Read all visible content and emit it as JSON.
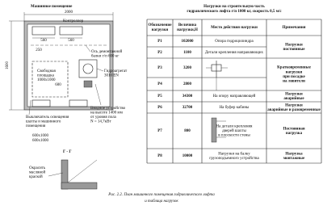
{
  "plan": {
    "title": "Машинное помещение",
    "width_dim": "2000",
    "height_dim": "1600",
    "controller": "Контроллер",
    "dims": [
      "560",
      "560",
      "250",
      "600"
    ],
    "beam_axis": [
      "Ось демонтажной",
      "балки г/п 600 кг"
    ],
    "free_area": [
      "Свободная",
      "площадка",
      "1000х1000"
    ],
    "hydro_unit": [
      "Гидроагрегат",
      "3010 EN"
    ],
    "inlet": [
      "Вводное устройство",
      "на высоте 1400 мм",
      "от уровня пола",
      "N = 14,7кВт"
    ],
    "switch": [
      "Выключатель освещения",
      "шахты и машинного",
      "помещения"
    ],
    "openings": [
      "600х1000",
      "600х1000"
    ],
    "section_title": "Г - Г",
    "paint_note": [
      "Окрасить",
      "масляной",
      "краской"
    ]
  },
  "table": {
    "title": [
      "Нагрузки на строительную часть",
      "гидравлического лифта г/п 1000 кг, скорость 0,5 м/с"
    ],
    "headers": [
      [
        "Обозначение",
        "нагрузки"
      ],
      [
        "Величина",
        "нагрузки,Н"
      ],
      [
        "Место действия нагрузки"
      ],
      [
        "Примечания"
      ]
    ],
    "rows": [
      {
        "id": "P1",
        "value": "102000",
        "place": [
          "Опора гидроцилиндра"
        ],
        "note": [
          "Нагрузки",
          "постоянные"
        ]
      },
      {
        "id": "P2",
        "value": "1100",
        "place": [
          "Детали крепления направляющих"
        ]
      },
      {
        "id": "P3",
        "value": "3200",
        "place": [],
        "note": [
          "Кратковременные",
          "нагрузки",
          "при посадке",
          "на ловители"
        ]
      },
      {
        "id": "P4",
        "value": "2800",
        "place": []
      },
      {
        "id": "P5",
        "value": "34300",
        "place": [
          "На опору направляющей"
        ],
        "note": [
          "Нагрузки",
          "аварийные"
        ]
      },
      {
        "id": "P6",
        "value": "32700",
        "place": [
          "На буфер кабины"
        ],
        "note": [
          "Нагрузки",
          "аварийные и разовременные"
        ]
      },
      {
        "id": "P7",
        "value": "800",
        "place": [
          "На детали крепления",
          "дверей шахты",
          "в плоскости стены"
        ],
        "note": [
          "Постоянная",
          "нагрузка"
        ]
      },
      {
        "id": "P8",
        "value": "10000",
        "place": [
          "Нагрузки на балку",
          "грузоподъемного устройства"
        ],
        "note": [
          "Нагрузка",
          "монтажные"
        ]
      }
    ]
  },
  "caption": [
    "Рис. 2.2. План машинного помещения гидравлического лифта",
    "и таблица нагрузок"
  ]
}
